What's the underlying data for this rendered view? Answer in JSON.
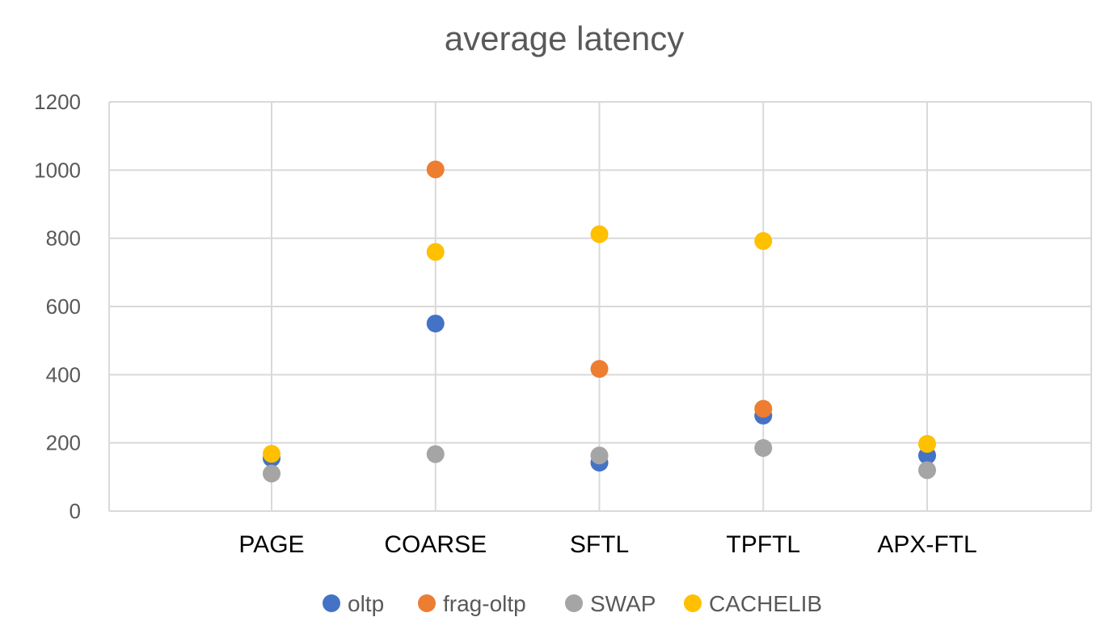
{
  "chart_data": {
    "type": "scatter",
    "title": "average latency",
    "xlabel": "",
    "ylabel": "",
    "categories": [
      "PAGE",
      "COARSE",
      "SFTL",
      "TPFTL",
      "APX-FTL"
    ],
    "ylim": [
      0,
      1200
    ],
    "yticks": [
      0,
      200,
      400,
      600,
      800,
      1000,
      1200
    ],
    "grid": true,
    "legend_position": "bottom",
    "series": [
      {
        "name": "oltp",
        "color": "#4472c4",
        "values": [
          155,
          550,
          142,
          280,
          163
        ]
      },
      {
        "name": "frag-oltp",
        "color": "#ed7d31",
        "values": [
          null,
          1002,
          417,
          300,
          null
        ]
      },
      {
        "name": "SWAP",
        "color": "#a5a5a5",
        "values": [
          110,
          167,
          163,
          185,
          120
        ]
      },
      {
        "name": "CACHELIB",
        "color": "#ffc000",
        "values": [
          168,
          760,
          812,
          792,
          197
        ]
      }
    ]
  }
}
